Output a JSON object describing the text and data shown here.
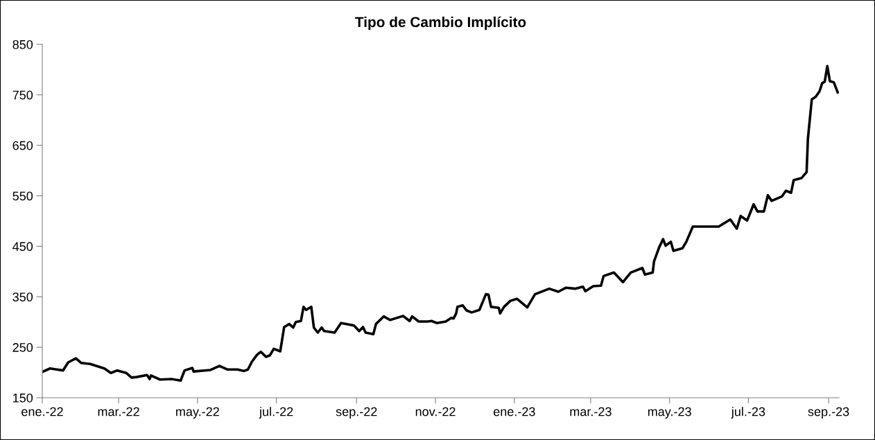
{
  "chart_data": {
    "type": "line",
    "title": "Tipo de Cambio Implícito",
    "xlim": [
      "2022-01-01",
      "2023-09-09"
    ],
    "ylim": [
      150,
      850
    ],
    "yticks": [
      150,
      250,
      350,
      450,
      550,
      650,
      750,
      850
    ],
    "xticks": [
      {
        "value": "2022-01-01",
        "label": "ene.-22"
      },
      {
        "value": "2022-03-01",
        "label": "mar.-22"
      },
      {
        "value": "2022-05-01",
        "label": "may.-22"
      },
      {
        "value": "2022-07-01",
        "label": "jul.-22"
      },
      {
        "value": "2022-09-01",
        "label": "sep.-22"
      },
      {
        "value": "2022-11-01",
        "label": "nov.-22"
      },
      {
        "value": "2023-01-01",
        "label": "ene.-23"
      },
      {
        "value": "2023-03-01",
        "label": "mar.-23"
      },
      {
        "value": "2023-05-01",
        "label": "may.-23"
      },
      {
        "value": "2023-07-01",
        "label": "jul.-23"
      },
      {
        "value": "2023-09-01",
        "label": "sep.-23"
      }
    ],
    "grid": false,
    "legend": false,
    "marker": "none",
    "line_style": "solid",
    "series": [
      {
        "color": "#000000",
        "x": [
          "2022-01-01",
          "2022-01-07",
          "2022-01-17",
          "2022-01-21",
          "2022-01-27",
          "2022-01-31",
          "2022-02-07",
          "2022-02-18",
          "2022-02-23",
          "2022-02-28",
          "2022-03-07",
          "2022-03-11",
          "2022-03-15",
          "2022-03-23",
          "2022-03-25",
          "2022-03-26",
          "2022-04-02",
          "2022-04-11",
          "2022-04-18",
          "2022-04-21",
          "2022-04-27",
          "2022-04-28",
          "2022-05-11",
          "2022-05-18",
          "2022-05-24",
          "2022-06-01",
          "2022-06-06",
          "2022-06-09",
          "2022-06-12",
          "2022-06-16",
          "2022-06-19",
          "2022-06-23",
          "2022-06-26",
          "2022-06-29",
          "2022-07-04",
          "2022-07-07",
          "2022-07-11",
          "2022-07-14",
          "2022-07-16",
          "2022-07-20",
          "2022-07-22",
          "2022-07-24",
          "2022-07-28",
          "2022-07-30",
          "2022-08-02",
          "2022-08-05",
          "2022-08-07",
          "2022-08-15",
          "2022-08-20",
          "2022-08-30",
          "2022-09-03",
          "2022-09-06",
          "2022-09-08",
          "2022-09-14",
          "2022-09-16",
          "2022-09-22",
          "2022-09-27",
          "2022-10-02",
          "2022-10-07",
          "2022-10-12",
          "2022-10-14",
          "2022-10-19",
          "2022-10-26",
          "2022-10-29",
          "2022-11-02",
          "2022-11-09",
          "2022-11-13",
          "2022-11-15",
          "2022-11-17",
          "2022-11-18",
          "2022-11-22",
          "2022-11-25",
          "2022-11-29",
          "2022-12-05",
          "2022-12-10",
          "2022-12-12",
          "2022-12-14",
          "2022-12-20",
          "2022-12-21",
          "2022-12-24",
          "2022-12-29",
          "2023-01-03",
          "2023-01-11",
          "2023-01-17",
          "2023-01-28",
          "2023-02-04",
          "2023-02-10",
          "2023-02-17",
          "2023-02-23",
          "2023-02-25",
          "2023-03-03",
          "2023-03-09",
          "2023-03-11",
          "2023-03-19",
          "2023-03-26",
          "2023-04-01",
          "2023-04-10",
          "2023-04-12",
          "2023-04-18",
          "2023-04-19",
          "2023-04-23",
          "2023-04-26",
          "2023-04-28",
          "2023-05-02",
          "2023-05-04",
          "2023-05-11",
          "2023-05-14",
          "2023-05-19",
          "2023-05-30",
          "2023-06-08",
          "2023-06-17",
          "2023-06-22",
          "2023-06-25",
          "2023-06-30",
          "2023-07-05",
          "2023-07-08",
          "2023-07-13",
          "2023-07-16",
          "2023-07-19",
          "2023-07-27",
          "2023-07-30",
          "2023-08-03",
          "2023-08-05",
          "2023-08-11",
          "2023-08-15",
          "2023-08-16",
          "2023-08-19",
          "2023-08-22",
          "2023-08-25",
          "2023-08-27",
          "2023-08-29",
          "2023-08-31",
          "2023-09-02",
          "2023-09-05",
          "2023-09-08"
        ],
        "values": [
          201,
          208,
          204,
          220,
          228,
          219,
          217,
          208,
          199,
          204,
          199,
          190,
          191,
          195,
          187,
          194,
          186,
          187,
          184,
          204,
          209,
          202,
          205,
          213,
          206,
          206,
          203,
          206,
          221,
          235,
          241,
          231,
          234,
          247,
          242,
          290,
          296,
          289,
          300,
          302,
          330,
          324,
          330,
          289,
          279,
          289,
          282,
          279,
          298,
          293,
          282,
          290,
          279,
          276,
          296,
          311,
          304,
          308,
          312,
          302,
          311,
          301,
          301,
          302,
          298,
          301,
          308,
          307,
          317,
          330,
          333,
          323,
          319,
          324,
          355,
          354,
          330,
          328,
          317,
          330,
          342,
          346,
          329,
          355,
          366,
          360,
          368,
          366,
          370,
          361,
          371,
          372,
          391,
          398,
          379,
          398,
          407,
          394,
          398,
          420,
          448,
          464,
          451,
          459,
          441,
          446,
          459,
          489,
          489,
          489,
          503,
          485,
          510,
          501,
          533,
          519,
          519,
          551,
          540,
          549,
          560,
          556,
          581,
          585,
          597,
          663,
          741,
          746,
          757,
          773,
          776,
          807,
          777,
          775,
          755
        ]
      }
    ]
  }
}
